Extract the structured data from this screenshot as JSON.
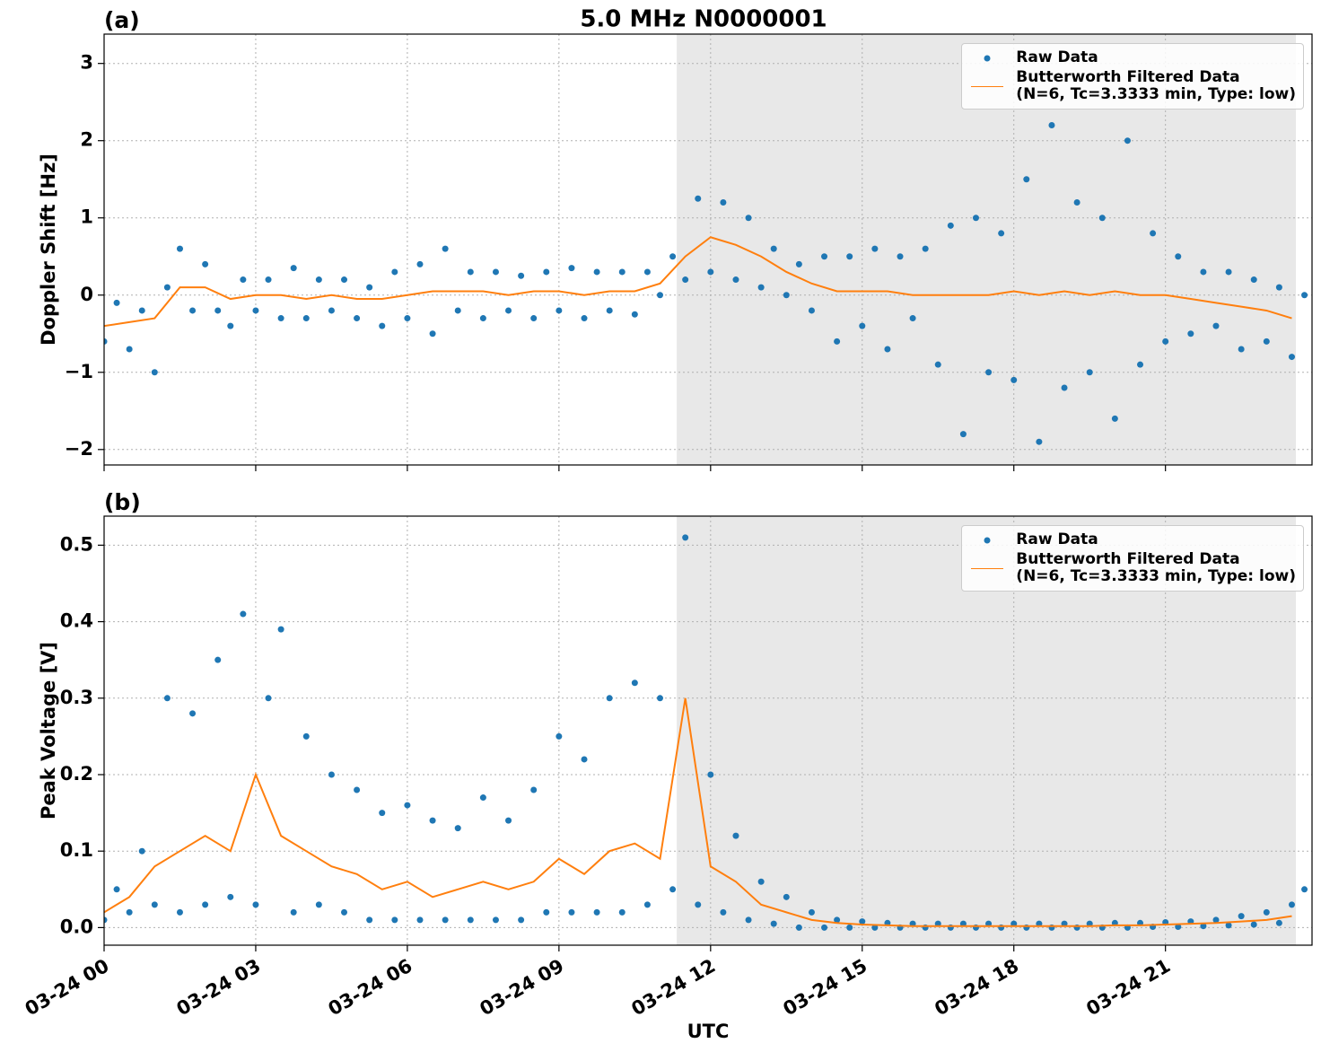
{
  "title": "5.0 MHz N0000001",
  "chart_data": [
    {
      "type": "line",
      "panel_label": "(a)",
      "ylabel": "Doppler Shift [Hz]",
      "xlim": [
        0,
        23.9
      ],
      "ylim": [
        -2.2,
        3.38
      ],
      "xticks": [
        0,
        3,
        6,
        9,
        12,
        15,
        18,
        21
      ],
      "yticks": [
        {
          "value": -2,
          "label": "−2"
        },
        {
          "value": -1,
          "label": "−1"
        },
        0,
        1,
        2,
        3
      ],
      "grid": true,
      "shade": [
        11.33,
        23.58
      ],
      "shade_color": "#e8e8e8",
      "legend": "upper right",
      "series": [
        {
          "name": "Raw Data",
          "kind": "scatter",
          "color": "#1f77b4",
          "x": [
            0,
            0.25,
            0.5,
            0.75,
            1,
            1.25,
            1.5,
            1.75,
            2,
            2.25,
            2.5,
            2.75,
            3,
            3.25,
            3.5,
            3.75,
            4,
            4.25,
            4.5,
            4.75,
            5,
            5.25,
            5.5,
            5.75,
            6,
            6.25,
            6.5,
            6.75,
            7,
            7.25,
            7.5,
            7.75,
            8,
            8.25,
            8.5,
            8.75,
            9,
            9.25,
            9.5,
            9.75,
            10,
            10.25,
            10.5,
            10.75,
            11,
            11.25,
            11.5,
            11.75,
            12,
            12.25,
            12.5,
            12.75,
            13,
            13.25,
            13.5,
            13.75,
            14,
            14.25,
            14.5,
            14.75,
            15,
            15.25,
            15.5,
            15.75,
            16,
            16.25,
            16.5,
            16.75,
            17,
            17.25,
            17.5,
            17.75,
            18,
            18.25,
            18.5,
            18.75,
            19,
            19.25,
            19.5,
            19.75,
            20,
            20.25,
            20.5,
            20.75,
            21,
            21.25,
            21.5,
            21.75,
            22,
            22.25,
            22.5,
            22.75,
            23,
            23.25,
            23.5,
            23.75
          ],
          "values": [
            -0.6,
            -0.1,
            -0.7,
            -0.2,
            -1.0,
            0.1,
            0.6,
            -0.2,
            0.4,
            -0.2,
            -0.4,
            0.2,
            -0.2,
            0.2,
            -0.3,
            0.35,
            -0.3,
            0.2,
            -0.2,
            0.2,
            -0.3,
            0.1,
            -0.4,
            0.3,
            -0.3,
            0.4,
            -0.5,
            0.6,
            -0.2,
            0.3,
            -0.3,
            0.3,
            -0.2,
            0.25,
            -0.3,
            0.3,
            -0.2,
            0.35,
            -0.3,
            0.3,
            -0.2,
            0.3,
            -0.25,
            0.3,
            0.0,
            0.5,
            0.2,
            1.25,
            0.3,
            1.2,
            0.2,
            1.0,
            0.1,
            0.6,
            0.0,
            0.4,
            -0.2,
            0.5,
            -0.6,
            0.5,
            -0.4,
            0.6,
            -0.7,
            0.5,
            -0.3,
            0.6,
            -0.9,
            0.9,
            -1.8,
            1.0,
            -1.0,
            0.8,
            -1.1,
            1.5,
            -1.9,
            2.2,
            -1.2,
            1.2,
            -1.0,
            1.0,
            -1.6,
            2.0,
            -0.9,
            0.8,
            -0.6,
            0.5,
            -0.5,
            0.3,
            -0.4,
            0.3,
            -0.7,
            0.2,
            -0.6,
            0.1,
            -0.8,
            0.0
          ]
        },
        {
          "name": "Butterworth Filtered Data\n(N=6, Tc=3.3333 min, Type: low)",
          "kind": "line",
          "color": "#ff7f0e",
          "x": [
            0,
            0.5,
            1,
            1.5,
            2,
            2.5,
            3,
            3.5,
            4,
            4.5,
            5,
            5.5,
            6,
            6.5,
            7,
            7.5,
            8,
            8.5,
            9,
            9.5,
            10,
            10.5,
            11,
            11.5,
            12,
            12.5,
            13,
            13.5,
            14,
            14.5,
            15,
            15.5,
            16,
            16.5,
            17,
            17.5,
            18,
            18.5,
            19,
            19.5,
            20,
            20.5,
            21,
            21.5,
            22,
            22.5,
            23,
            23.5
          ],
          "values": [
            -0.4,
            -0.35,
            -0.3,
            0.1,
            0.1,
            -0.05,
            0.0,
            0.0,
            -0.05,
            0.0,
            -0.05,
            -0.05,
            0.0,
            0.05,
            0.05,
            0.05,
            0.0,
            0.05,
            0.05,
            0.0,
            0.05,
            0.05,
            0.15,
            0.5,
            0.75,
            0.65,
            0.5,
            0.3,
            0.15,
            0.05,
            0.05,
            0.05,
            0.0,
            0.0,
            0.0,
            0.0,
            0.05,
            0.0,
            0.05,
            0.0,
            0.05,
            0.0,
            0.0,
            -0.05,
            -0.1,
            -0.15,
            -0.2,
            -0.3
          ]
        }
      ]
    },
    {
      "type": "line",
      "panel_label": "(b)",
      "ylabel": "Peak Voltage [V]",
      "xlabel": "UTC",
      "xlim": [
        0,
        23.9
      ],
      "ylim": [
        -0.023,
        0.538
      ],
      "xticks": [
        {
          "value": 0,
          "label": "03-24 00"
        },
        {
          "value": 3,
          "label": "03-24 03"
        },
        {
          "value": 6,
          "label": "03-24 06"
        },
        {
          "value": 9,
          "label": "03-24 09"
        },
        {
          "value": 12,
          "label": "03-24 12"
        },
        {
          "value": 15,
          "label": "03-24 15"
        },
        {
          "value": 18,
          "label": "03-24 18"
        },
        {
          "value": 21,
          "label": "03-24 21"
        }
      ],
      "yticks": [
        {
          "value": 0,
          "label": "0.0"
        },
        0.1,
        0.2,
        0.3,
        0.4,
        0.5
      ],
      "grid": true,
      "shade": [
        11.33,
        23.58
      ],
      "shade_color": "#e8e8e8",
      "legend": "upper right",
      "series": [
        {
          "name": "Raw Data",
          "kind": "scatter",
          "color": "#1f77b4",
          "x": [
            0,
            0.25,
            0.5,
            0.75,
            1,
            1.25,
            1.5,
            1.75,
            2,
            2.25,
            2.5,
            2.75,
            3,
            3.25,
            3.5,
            3.75,
            4,
            4.25,
            4.5,
            4.75,
            5,
            5.25,
            5.5,
            5.75,
            6,
            6.25,
            6.5,
            6.75,
            7,
            7.25,
            7.5,
            7.75,
            8,
            8.25,
            8.5,
            8.75,
            9,
            9.25,
            9.5,
            9.75,
            10,
            10.25,
            10.5,
            10.75,
            11,
            11.25,
            11.5,
            11.75,
            12,
            12.25,
            12.5,
            12.75,
            13,
            13.25,
            13.5,
            13.75,
            14,
            14.25,
            14.5,
            14.75,
            15,
            15.25,
            15.5,
            15.75,
            16,
            16.25,
            16.5,
            16.75,
            17,
            17.25,
            17.5,
            17.75,
            18,
            18.25,
            18.5,
            18.75,
            19,
            19.25,
            19.5,
            19.75,
            20,
            20.25,
            20.5,
            20.75,
            21,
            21.25,
            21.5,
            21.75,
            22,
            22.25,
            22.5,
            22.75,
            23,
            23.25,
            23.5,
            23.75
          ],
          "values": [
            0.01,
            0.05,
            0.02,
            0.1,
            0.03,
            0.3,
            0.02,
            0.28,
            0.03,
            0.35,
            0.04,
            0.41,
            0.03,
            0.3,
            0.39,
            0.02,
            0.25,
            0.03,
            0.2,
            0.02,
            0.18,
            0.01,
            0.15,
            0.01,
            0.16,
            0.01,
            0.14,
            0.01,
            0.13,
            0.01,
            0.17,
            0.01,
            0.14,
            0.01,
            0.18,
            0.02,
            0.25,
            0.02,
            0.22,
            0.02,
            0.3,
            0.02,
            0.32,
            0.03,
            0.3,
            0.05,
            0.51,
            0.03,
            0.2,
            0.02,
            0.12,
            0.01,
            0.06,
            0.005,
            0.04,
            0.0,
            0.02,
            0.0,
            0.01,
            0.0,
            0.008,
            0.0,
            0.006,
            0.0,
            0.005,
            0.0,
            0.005,
            0.0,
            0.005,
            0.0,
            0.005,
            0.0,
            0.005,
            0.0,
            0.005,
            0.0,
            0.005,
            0.0,
            0.005,
            0.0,
            0.006,
            0.0,
            0.006,
            0.001,
            0.007,
            0.001,
            0.008,
            0.002,
            0.01,
            0.003,
            0.015,
            0.004,
            0.02,
            0.006,
            0.03,
            0.05
          ]
        },
        {
          "name": "Butterworth Filtered Data\n(N=6, Tc=3.3333 min, Type: low)",
          "kind": "line",
          "color": "#ff7f0e",
          "x": [
            0,
            0.5,
            1,
            1.5,
            2,
            2.5,
            3,
            3.5,
            4,
            4.5,
            5,
            5.5,
            6,
            6.5,
            7,
            7.5,
            8,
            8.5,
            9,
            9.5,
            10,
            10.5,
            11,
            11.5,
            12,
            12.5,
            13,
            13.5,
            14,
            14.5,
            15,
            15.5,
            16,
            16.5,
            17,
            17.5,
            18,
            18.5,
            19,
            19.5,
            20,
            20.5,
            21,
            21.5,
            22,
            22.5,
            23,
            23.5
          ],
          "values": [
            0.02,
            0.04,
            0.08,
            0.1,
            0.12,
            0.1,
            0.2,
            0.12,
            0.1,
            0.08,
            0.07,
            0.05,
            0.06,
            0.04,
            0.05,
            0.06,
            0.05,
            0.06,
            0.09,
            0.07,
            0.1,
            0.11,
            0.09,
            0.3,
            0.08,
            0.06,
            0.03,
            0.02,
            0.01,
            0.006,
            0.004,
            0.003,
            0.002,
            0.002,
            0.002,
            0.002,
            0.002,
            0.002,
            0.002,
            0.002,
            0.003,
            0.003,
            0.004,
            0.005,
            0.006,
            0.008,
            0.01,
            0.015
          ]
        }
      ]
    }
  ]
}
